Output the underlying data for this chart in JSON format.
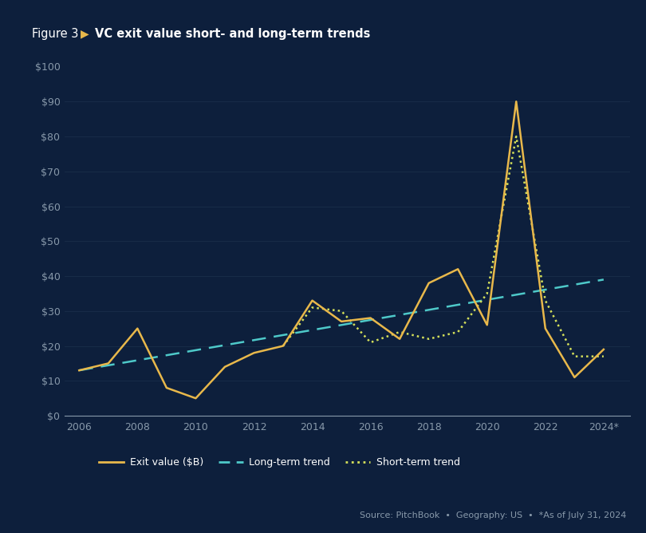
{
  "bg_color": "#0d1f3c",
  "header_color": "#162d50",
  "exit_value_color": "#e8b84b",
  "long_trend_color": "#4ec9c9",
  "short_trend_color": "#d4e05a",
  "years": [
    2006,
    2007,
    2008,
    2009,
    2010,
    2011,
    2012,
    2013,
    2014,
    2015,
    2016,
    2017,
    2018,
    2019,
    2020,
    2021,
    2022,
    2023,
    2024
  ],
  "exit_values": [
    13,
    15,
    25,
    8,
    5,
    14,
    18,
    20,
    33,
    27,
    28,
    22,
    38,
    42,
    26,
    90,
    25,
    11,
    19
  ],
  "ylim": [
    0,
    100
  ],
  "yticks": [
    0,
    10,
    20,
    30,
    40,
    50,
    60,
    70,
    80,
    90,
    100
  ],
  "xlim_min": 2005.5,
  "xlim_max": 2024.9,
  "long_trend_x": [
    2006,
    2024
  ],
  "long_trend_y": [
    13,
    39
  ],
  "short_trend_years": [
    2013,
    2014,
    2015,
    2016,
    2017,
    2018,
    2019,
    2020,
    2021,
    2022,
    2023,
    2024
  ],
  "short_trend_values": [
    20,
    31,
    30,
    21,
    24,
    22,
    24,
    35,
    80,
    33,
    17,
    17
  ],
  "xtick_years": [
    2006,
    2008,
    2010,
    2012,
    2014,
    2016,
    2018,
    2020,
    2022,
    2024
  ],
  "source_text": "Source: PitchBook  •  Geography: US  •  *As of July 31, 2024",
  "tick_color": "#8899aa",
  "grid_color": "#1a2e4a"
}
